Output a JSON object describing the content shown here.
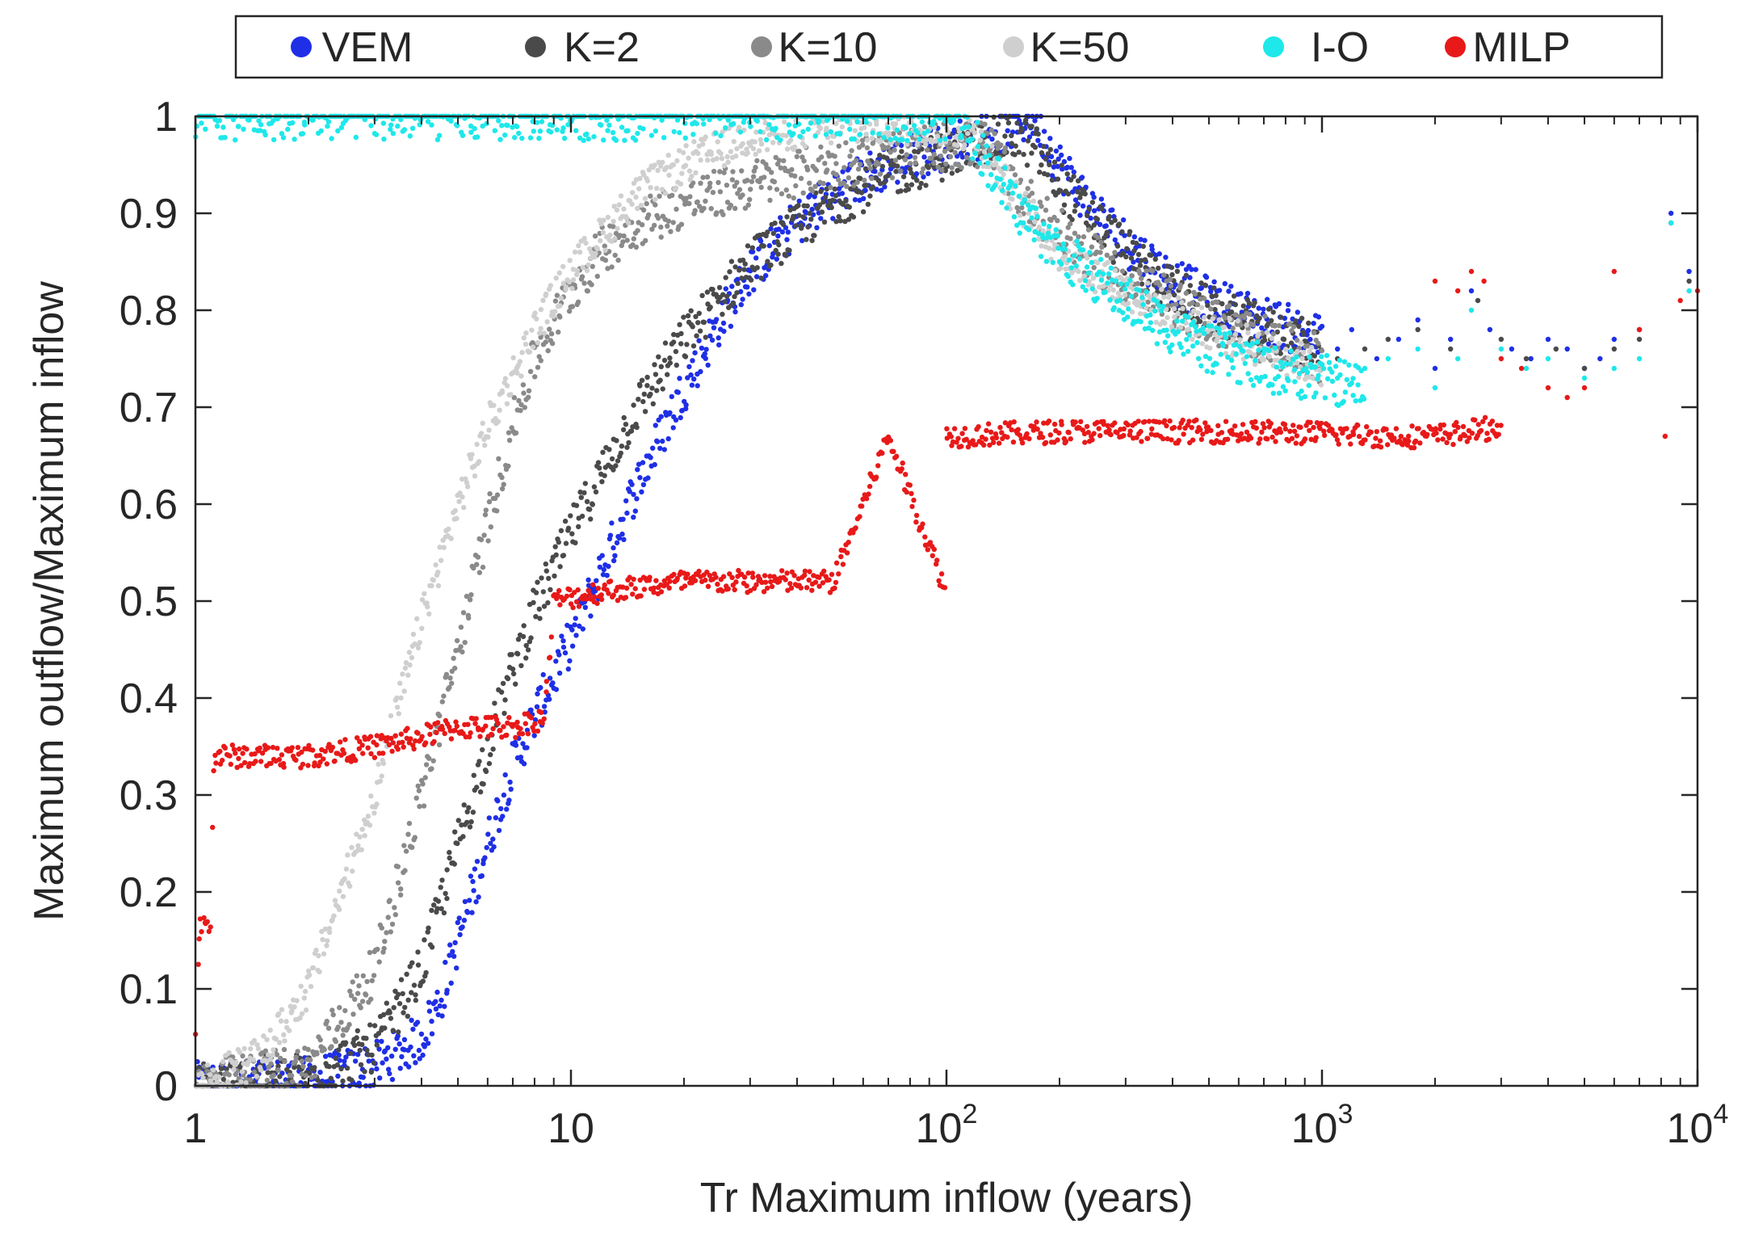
{
  "chart_data": {
    "type": "scatter",
    "title": "",
    "xlabel": "Tr Maximum inflow (years)",
    "ylabel": "Maximum outflow/Maximum inflow",
    "xscale": "log",
    "xlim": [
      1,
      10000
    ],
    "ylim": [
      0,
      1
    ],
    "x_ticks": [
      {
        "value": 1,
        "base": "1",
        "exp": ""
      },
      {
        "value": 10,
        "base": "10",
        "exp": ""
      },
      {
        "value": 100,
        "base": "10",
        "exp": "2"
      },
      {
        "value": 1000,
        "base": "10",
        "exp": "3"
      },
      {
        "value": 10000,
        "base": "10",
        "exp": "4"
      }
    ],
    "y_ticks": [
      "0",
      "0.1",
      "0.2",
      "0.3",
      "0.4",
      "0.5",
      "0.6",
      "0.7",
      "0.8",
      "0.9",
      "1"
    ],
    "grid": false,
    "legend_position": "top-outside",
    "series": [
      {
        "name": "VEM",
        "color": "#1f2fe6",
        "spread": 0.025,
        "points": [
          [
            1,
            0
          ],
          [
            2,
            0.005
          ],
          [
            3,
            0.02
          ],
          [
            4,
            0.05
          ],
          [
            4.5,
            0.09
          ],
          [
            5,
            0.15
          ],
          [
            6,
            0.25
          ],
          [
            7,
            0.33
          ],
          [
            8,
            0.38
          ],
          [
            10,
            0.46
          ],
          [
            12,
            0.53
          ],
          [
            15,
            0.62
          ],
          [
            20,
            0.72
          ],
          [
            25,
            0.79
          ],
          [
            30,
            0.84
          ],
          [
            40,
            0.89
          ],
          [
            50,
            0.92
          ],
          [
            70,
            0.95
          ],
          [
            100,
            0.97
          ],
          [
            150,
            0.99
          ],
          [
            170,
            1.0
          ],
          [
            200,
            0.95
          ],
          [
            250,
            0.9
          ],
          [
            300,
            0.87
          ],
          [
            400,
            0.83
          ],
          [
            500,
            0.81
          ],
          [
            700,
            0.79
          ],
          [
            1000,
            0.77
          ]
        ]
      },
      {
        "name": "K=2",
        "color": "#4a4a4a",
        "spread": 0.025,
        "points": [
          [
            1,
            0
          ],
          [
            2,
            0.01
          ],
          [
            3,
            0.04
          ],
          [
            4,
            0.12
          ],
          [
            5,
            0.25
          ],
          [
            6,
            0.35
          ],
          [
            7,
            0.43
          ],
          [
            8,
            0.49
          ],
          [
            10,
            0.57
          ],
          [
            12,
            0.63
          ],
          [
            15,
            0.7
          ],
          [
            20,
            0.77
          ],
          [
            30,
            0.85
          ],
          [
            50,
            0.91
          ],
          [
            70,
            0.94
          ],
          [
            100,
            0.96
          ],
          [
            150,
            0.98
          ],
          [
            170,
            0.97
          ],
          [
            200,
            0.93
          ],
          [
            300,
            0.86
          ],
          [
            400,
            0.82
          ],
          [
            500,
            0.8
          ],
          [
            700,
            0.78
          ],
          [
            1000,
            0.76
          ]
        ]
      },
      {
        "name": "K=10",
        "color": "#8a8a8a",
        "spread": 0.025,
        "points": [
          [
            1,
            0
          ],
          [
            2,
            0.02
          ],
          [
            3,
            0.12
          ],
          [
            4,
            0.3
          ],
          [
            5,
            0.45
          ],
          [
            6,
            0.58
          ],
          [
            7,
            0.68
          ],
          [
            8,
            0.75
          ],
          [
            10,
            0.82
          ],
          [
            12,
            0.86
          ],
          [
            15,
            0.89
          ],
          [
            20,
            0.91
          ],
          [
            30,
            0.93
          ],
          [
            50,
            0.95
          ],
          [
            100,
            0.97
          ],
          [
            130,
            0.97
          ],
          [
            150,
            0.93
          ],
          [
            200,
            0.88
          ],
          [
            300,
            0.83
          ],
          [
            500,
            0.79
          ],
          [
            700,
            0.77
          ],
          [
            1000,
            0.75
          ]
        ]
      },
      {
        "name": "K=50",
        "color": "#cfcfcf",
        "spread": 0.02,
        "points": [
          [
            1,
            0
          ],
          [
            1.5,
            0.03
          ],
          [
            2,
            0.1
          ],
          [
            3,
            0.3
          ],
          [
            4,
            0.48
          ],
          [
            5,
            0.6
          ],
          [
            6,
            0.68
          ],
          [
            8,
            0.78
          ],
          [
            10,
            0.84
          ],
          [
            15,
            0.92
          ],
          [
            20,
            0.95
          ],
          [
            30,
            0.98
          ],
          [
            50,
            0.99
          ],
          [
            100,
            0.99
          ],
          [
            120,
            0.98
          ],
          [
            150,
            0.92
          ],
          [
            200,
            0.86
          ],
          [
            300,
            0.82
          ],
          [
            500,
            0.78
          ],
          [
            700,
            0.76
          ],
          [
            1000,
            0.74
          ]
        ]
      },
      {
        "name": "I-O",
        "color": "#1ee8ea",
        "spread": 0.025,
        "points": [
          [
            1,
            1
          ],
          [
            10,
            1
          ],
          [
            50,
            1
          ],
          [
            110,
            1
          ],
          [
            130,
            0.95
          ],
          [
            150,
            0.91
          ],
          [
            200,
            0.86
          ],
          [
            300,
            0.81
          ],
          [
            400,
            0.78
          ],
          [
            500,
            0.76
          ],
          [
            700,
            0.74
          ],
          [
            1000,
            0.73
          ],
          [
            1300,
            0.72
          ]
        ]
      },
      {
        "name": "MILP",
        "color": "#e81919",
        "spread": 0.012,
        "points": [
          [
            1,
            0.05
          ],
          [
            1.03,
            0.17
          ],
          [
            1.1,
            0.17
          ],
          [
            1.12,
            0.34
          ],
          [
            2,
            0.34
          ],
          [
            3,
            0.35
          ],
          [
            4,
            0.36
          ],
          [
            5,
            0.37
          ],
          [
            7,
            0.37
          ],
          [
            8.5,
            0.38
          ],
          [
            9,
            0.5
          ],
          [
            12,
            0.51
          ],
          [
            20,
            0.52
          ],
          [
            50,
            0.52
          ],
          [
            100,
            0.51
          ],
          [
            60,
            0.6
          ],
          [
            70,
            0.67
          ],
          [
            100,
            0.67
          ],
          [
            200,
            0.675
          ],
          [
            500,
            0.675
          ],
          [
            1000,
            0.673
          ],
          [
            1500,
            0.67
          ],
          [
            2000,
            0.67
          ],
          [
            3000,
            0.68
          ]
        ]
      }
    ],
    "sparse_points": {
      "VEM": [
        [
          1100,
          0.76
        ],
        [
          1200,
          0.78
        ],
        [
          1400,
          0.75
        ],
        [
          1600,
          0.77
        ],
        [
          1800,
          0.79
        ],
        [
          2000,
          0.74
        ],
        [
          2200,
          0.77
        ],
        [
          2500,
          0.82
        ],
        [
          2800,
          0.78
        ],
        [
          3200,
          0.76
        ],
        [
          3600,
          0.75
        ],
        [
          4000,
          0.77
        ],
        [
          4500,
          0.76
        ],
        [
          5000,
          0.74
        ],
        [
          5500,
          0.75
        ],
        [
          6000,
          0.77
        ],
        [
          7000,
          0.78
        ],
        [
          8500,
          0.9
        ],
        [
          9500,
          0.84
        ]
      ],
      "K=2": [
        [
          1100,
          0.75
        ],
        [
          1300,
          0.76
        ],
        [
          1500,
          0.77
        ],
        [
          1800,
          0.78
        ],
        [
          2200,
          0.76
        ],
        [
          2600,
          0.81
        ],
        [
          3000,
          0.77
        ],
        [
          3500,
          0.75
        ],
        [
          4200,
          0.76
        ],
        [
          5000,
          0.74
        ],
        [
          6000,
          0.76
        ],
        [
          7000,
          0.77
        ],
        [
          8500,
          0.89
        ],
        [
          9500,
          0.83
        ]
      ],
      "I-O": [
        [
          1100,
          0.73
        ],
        [
          1300,
          0.74
        ],
        [
          1500,
          0.75
        ],
        [
          1800,
          0.76
        ],
        [
          2000,
          0.72
        ],
        [
          2300,
          0.75
        ],
        [
          2500,
          0.8
        ],
        [
          3000,
          0.76
        ],
        [
          3500,
          0.74
        ],
        [
          4000,
          0.75
        ],
        [
          5000,
          0.73
        ],
        [
          6000,
          0.74
        ],
        [
          7000,
          0.75
        ],
        [
          8500,
          0.89
        ],
        [
          9500,
          0.82
        ]
      ],
      "MILP": [
        [
          1700,
          0.67
        ],
        [
          2000,
          0.83
        ],
        [
          2300,
          0.82
        ],
        [
          2500,
          0.84
        ],
        [
          2700,
          0.83
        ],
        [
          3000,
          0.75
        ],
        [
          3400,
          0.74
        ],
        [
          4000,
          0.72
        ],
        [
          4500,
          0.71
        ],
        [
          5000,
          0.72
        ],
        [
          6000,
          0.84
        ],
        [
          7000,
          0.78
        ],
        [
          8200,
          0.67
        ],
        [
          9000,
          0.81
        ],
        [
          10000,
          0.82
        ]
      ]
    }
  },
  "legend": {
    "items": [
      {
        "label": "VEM",
        "color": "#1f2fe6"
      },
      {
        "label": "K=2",
        "color": "#4a4a4a"
      },
      {
        "label": "K=10",
        "color": "#8a8a8a"
      },
      {
        "label": "K=50",
        "color": "#cfcfcf"
      },
      {
        "label": "I-O",
        "color": "#1ee8ea"
      },
      {
        "label": "MILP",
        "color": "#e81919"
      }
    ]
  }
}
